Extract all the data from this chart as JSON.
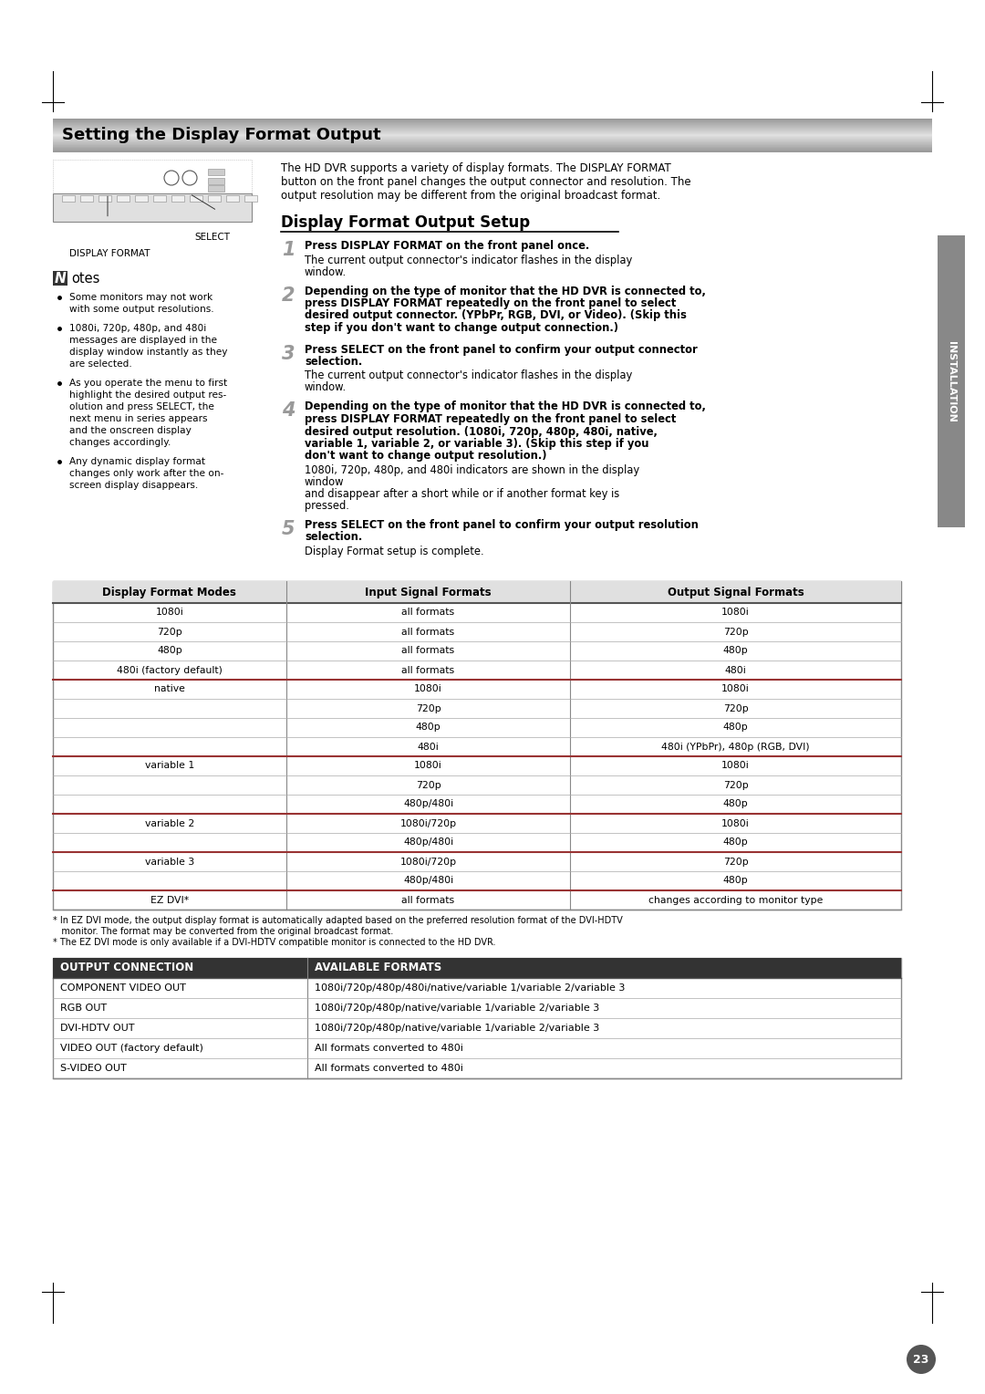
{
  "title": "Setting the Display Format Output",
  "page_bg": "#ffffff",
  "page_number": "23",
  "intro_text": "The HD DVR supports a variety of display formats. The DISPLAY FORMAT\nbutton on the front panel changes the output connector and resolution. The\noutput resolution may be different from the original broadcast format.",
  "section2_title": "Display Format Output Setup",
  "steps": [
    {
      "num": "1",
      "bold": "Press DISPLAY FORMAT on the front panel once.",
      "normal": "The current output connector's indicator flashes in the display window."
    },
    {
      "num": "2",
      "bold": "Depending on the type of monitor that the HD DVR is connected to, press DISPLAY FORMAT repeatedly on the front panel to select desired output connector. (YPbPr, RGB, DVI, or Video). (Skip this step if you don't want to change output connection.)",
      "normal": ""
    },
    {
      "num": "3",
      "bold": "Press SELECT on the front panel to confirm your output connector selection.",
      "normal": "The current output connector's indicator flashes in the display window."
    },
    {
      "num": "4",
      "bold": "Depending on the type of monitor that the HD DVR is connected to, press DISPLAY FORMAT repeatedly on the front panel to select desired output resolution. (1080i, 720p, 480p, 480i, native, variable 1, variable 2, or variable 3). (Skip this step if you don't want to change output resolution.)",
      "normal": "1080i, 720p, 480p, and 480i indicators are shown in the display window\nand disappear after a short while or if another format key is pressed."
    },
    {
      "num": "5",
      "bold": "Press SELECT on the front panel to confirm your output resolution selection.",
      "normal": "Display Format setup is complete."
    }
  ],
  "notes": [
    "Some monitors may not work\nwith some output resolutions.",
    "1080i, 720p, 480p, and 480i\nmessages are displayed in the\ndisplay window instantly as they\nare selected.",
    "As you operate the menu to first\nhighlight the desired output res-\nolution and press SELECT, the\nnext menu in series appears\nand the onscreen display\nchanges accordingly.",
    "Any dynamic display format\nchanges only work after the on-\nscreen display disappears."
  ],
  "table1_headers": [
    "Display Format Modes",
    "Input Signal Formats",
    "Output Signal Formats"
  ],
  "table1_rows": [
    [
      "1080i",
      "all formats",
      "1080i"
    ],
    [
      "720p",
      "all formats",
      "720p"
    ],
    [
      "480p",
      "all formats",
      "480p"
    ],
    [
      "480i (factory default)",
      "all formats",
      "480i"
    ],
    [
      "native",
      "1080i",
      "1080i"
    ],
    [
      "",
      "720p",
      "720p"
    ],
    [
      "",
      "480p",
      "480p"
    ],
    [
      "",
      "480i",
      "480i (YPbPr), 480p (RGB, DVI)"
    ],
    [
      "variable 1",
      "1080i",
      "1080i"
    ],
    [
      "",
      "720p",
      "720p"
    ],
    [
      "",
      "480p/480i",
      "480p"
    ],
    [
      "variable 2",
      "1080i/720p",
      "1080i"
    ],
    [
      "",
      "480p/480i",
      "480p"
    ],
    [
      "variable 3",
      "1080i/720p",
      "720p"
    ],
    [
      "",
      "480p/480i",
      "480p"
    ],
    [
      "EZ DVI*",
      "all formats",
      "changes according to monitor type"
    ]
  ],
  "table1_note1": "* In EZ DVI mode, the output display format is automatically adapted based on the preferred resolution format of the DVI-HDTV",
  "table1_note1b": "   monitor. The format may be converted from the original broadcast format.",
  "table1_note2": "* The EZ DVI mode is only available if a DVI-HDTV compatible monitor is connected to the HD DVR.",
  "table2_headers": [
    "OUTPUT CONNECTION",
    "AVAILABLE FORMATS"
  ],
  "table2_rows": [
    [
      "COMPONENT VIDEO OUT",
      "1080i/720p/480p/480i/native/variable 1/variable 2/variable 3"
    ],
    [
      "RGB OUT",
      "1080i/720p/480p/native/variable 1/variable 2/variable 3"
    ],
    [
      "DVI-HDTV OUT",
      "1080i/720p/480p/native/variable 1/variable 2/variable 3"
    ],
    [
      "VIDEO OUT (factory default)",
      "All formats converted to 480i"
    ],
    [
      "S-VIDEO OUT",
      "All formats converted to 480i"
    ]
  ],
  "side_label": "INSTALLATION",
  "thick_line_rows": [
    4,
    8,
    11,
    13,
    15
  ]
}
